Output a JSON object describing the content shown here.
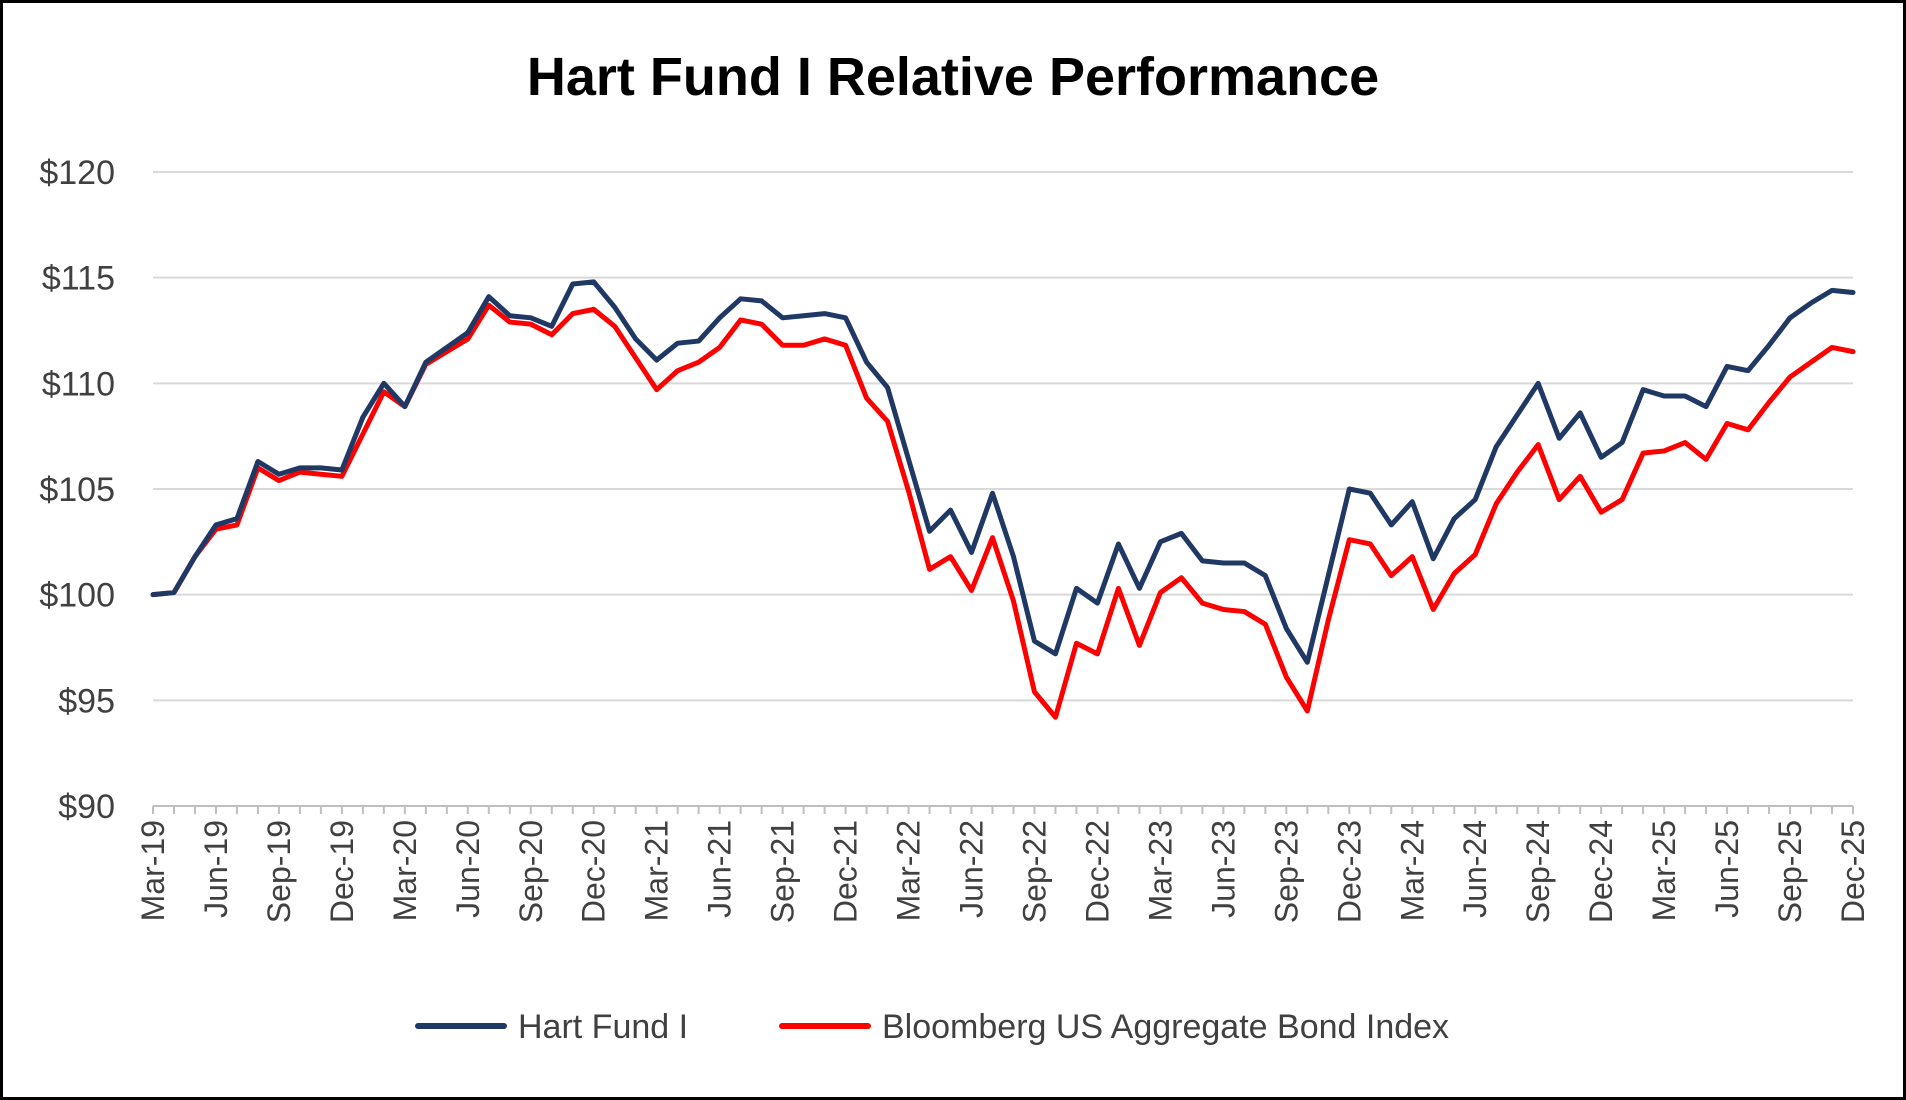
{
  "chart_data": {
    "type": "line",
    "title": "Hart Fund I Relative Performance",
    "xlabel": "",
    "ylabel": "",
    "ylim": [
      90,
      120
    ],
    "y_ticks": [
      90,
      95,
      100,
      105,
      110,
      115,
      120
    ],
    "y_tick_labels": [
      "$90",
      "$95",
      "$100",
      "$105",
      "$110",
      "$115",
      "$120"
    ],
    "grid": true,
    "legend_position": "bottom",
    "x_tick_labels": [
      "Mar-19",
      "Jun-19",
      "Sep-19",
      "Dec-19",
      "Mar-20",
      "Jun-20",
      "Sep-20",
      "Dec-20",
      "Mar-21",
      "Jun-21",
      "Sep-21",
      "Dec-21",
      "Mar-22",
      "Jun-22",
      "Sep-22",
      "Dec-22",
      "Mar-23",
      "Jun-23",
      "Sep-23",
      "Dec-23",
      "Mar-24",
      "Jun-24",
      "Sep-24",
      "Dec-24",
      "Mar-25",
      "Jun-25",
      "Sep-25",
      "Dec-25"
    ],
    "x": [
      "Mar-19",
      "Apr-19",
      "May-19",
      "Jun-19",
      "Jul-19",
      "Aug-19",
      "Sep-19",
      "Oct-19",
      "Nov-19",
      "Dec-19",
      "Jan-20",
      "Feb-20",
      "Mar-20",
      "Apr-20",
      "May-20",
      "Jun-20",
      "Jul-20",
      "Aug-20",
      "Sep-20",
      "Oct-20",
      "Nov-20",
      "Dec-20",
      "Jan-21",
      "Feb-21",
      "Mar-21",
      "Apr-21",
      "May-21",
      "Jun-21",
      "Jul-21",
      "Aug-21",
      "Sep-21",
      "Oct-21",
      "Nov-21",
      "Dec-21",
      "Jan-22",
      "Feb-22",
      "Mar-22",
      "Apr-22",
      "May-22",
      "Jun-22",
      "Jul-22",
      "Aug-22",
      "Sep-22",
      "Oct-22",
      "Nov-22",
      "Dec-22",
      "Jan-23",
      "Feb-23",
      "Mar-23",
      "Apr-23",
      "May-23",
      "Jun-23",
      "Jul-23",
      "Aug-23",
      "Sep-23",
      "Oct-23",
      "Nov-23",
      "Dec-23",
      "Jan-24",
      "Feb-24",
      "Mar-24",
      "Apr-24",
      "May-24",
      "Jun-24",
      "Jul-24",
      "Aug-24",
      "Sep-24",
      "Oct-24",
      "Nov-24",
      "Dec-24",
      "Jan-25",
      "Feb-25",
      "Mar-25",
      "Apr-25",
      "May-25",
      "Jun-25",
      "Jul-25",
      "Aug-25",
      "Sep-25",
      "Oct-25",
      "Nov-25",
      "Dec-25"
    ],
    "series": [
      {
        "name": "Hart Fund I",
        "color": "#1f3864",
        "values": [
          100.0,
          100.1,
          101.8,
          103.3,
          103.6,
          106.3,
          105.7,
          106.0,
          106.0,
          105.9,
          108.4,
          110.0,
          108.9,
          111.0,
          111.7,
          112.4,
          114.1,
          113.2,
          113.1,
          112.7,
          114.7,
          114.8,
          113.6,
          112.1,
          111.1,
          111.9,
          112.0,
          113.1,
          114.0,
          113.9,
          113.1,
          113.2,
          113.3,
          113.1,
          111.0,
          109.8,
          106.4,
          103.0,
          104.0,
          102.0,
          104.8,
          101.8,
          97.8,
          97.2,
          100.3,
          99.6,
          102.4,
          100.3,
          102.5,
          102.9,
          101.6,
          101.5,
          101.5,
          100.9,
          98.4,
          96.8,
          100.9,
          105.0,
          104.8,
          103.3,
          104.4,
          101.7,
          103.6,
          104.5,
          107.0,
          108.5,
          110.0,
          107.4,
          108.6,
          106.5,
          107.2,
          109.7,
          109.4,
          109.4,
          108.9,
          110.8,
          110.6,
          111.8,
          113.1,
          113.8,
          114.4,
          114.3
        ]
      },
      {
        "name": "Bloomberg US Aggregate Bond Index",
        "color": "#ff0000",
        "values": [
          100.0,
          100.1,
          101.8,
          103.1,
          103.3,
          106.0,
          105.4,
          105.8,
          105.7,
          105.6,
          107.6,
          109.6,
          108.9,
          110.9,
          111.5,
          112.1,
          113.7,
          112.9,
          112.8,
          112.3,
          113.3,
          113.5,
          112.7,
          111.2,
          109.7,
          110.6,
          111.0,
          111.7,
          113.0,
          112.8,
          111.8,
          111.8,
          112.1,
          111.8,
          109.3,
          108.2,
          104.9,
          101.2,
          101.8,
          100.2,
          102.7,
          99.7,
          95.4,
          94.2,
          97.7,
          97.2,
          100.3,
          97.6,
          100.1,
          100.8,
          99.6,
          99.3,
          99.2,
          98.6,
          96.1,
          94.5,
          98.8,
          102.6,
          102.4,
          100.9,
          101.8,
          99.3,
          101.0,
          101.9,
          104.3,
          105.8,
          107.1,
          104.5,
          105.6,
          103.9,
          104.5,
          106.7,
          106.8,
          107.2,
          106.4,
          108.1,
          107.8,
          109.1,
          110.3,
          111.0,
          111.7,
          111.5
        ]
      }
    ]
  }
}
